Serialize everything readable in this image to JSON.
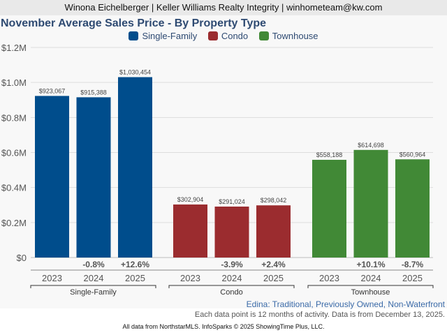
{
  "header": {
    "text": "Winona Eichelberger | Keller Williams Realty Integrity | winhometeam@kw.com"
  },
  "chart_data": {
    "type": "bar",
    "title": "November Average Sales Price - By Property Type",
    "xlabel": "",
    "ylabel": "",
    "ylim": [
      0,
      1200000
    ],
    "yticks": [
      {
        "value": 0,
        "label": "$0"
      },
      {
        "value": 200000,
        "label": "$0.2M"
      },
      {
        "value": 400000,
        "label": "$0.4M"
      },
      {
        "value": 600000,
        "label": "$0.6M"
      },
      {
        "value": 800000,
        "label": "$0.8M"
      },
      {
        "value": 1000000,
        "label": "$1.0M"
      },
      {
        "value": 1200000,
        "label": "$1.2M"
      }
    ],
    "grid": true,
    "legend_position": "top-center",
    "categories": [
      "2023",
      "2024",
      "2025"
    ],
    "series": [
      {
        "name": "Single-Family",
        "color": "#004d8c",
        "values": [
          923067,
          915388,
          1030454
        ],
        "value_labels": [
          "$923,067",
          "$915,388",
          "$1,030,454"
        ],
        "changes": [
          "",
          "-0.8%",
          "+12.6%"
        ]
      },
      {
        "name": "Condo",
        "color": "#9b2c2f",
        "values": [
          302904,
          291024,
          298042
        ],
        "value_labels": [
          "$302,904",
          "$291,024",
          "$298,042"
        ],
        "changes": [
          "",
          "-3.9%",
          "+2.4%"
        ]
      },
      {
        "name": "Townhouse",
        "color": "#418936",
        "values": [
          558188,
          614698,
          560964
        ],
        "value_labels": [
          "$558,188",
          "$614,698",
          "$560,964"
        ],
        "changes": [
          "",
          "+10.1%",
          "-8.7%"
        ]
      }
    ]
  },
  "subtitle": "Edina: Traditional, Previously Owned, Non-Waterfront",
  "note": "Each data point is 12 months of activity. Data is from December 13, 2025.",
  "footer": "All data from NorthstarMLS. InfoSparks © 2025 ShowingTime Plus, LLC."
}
